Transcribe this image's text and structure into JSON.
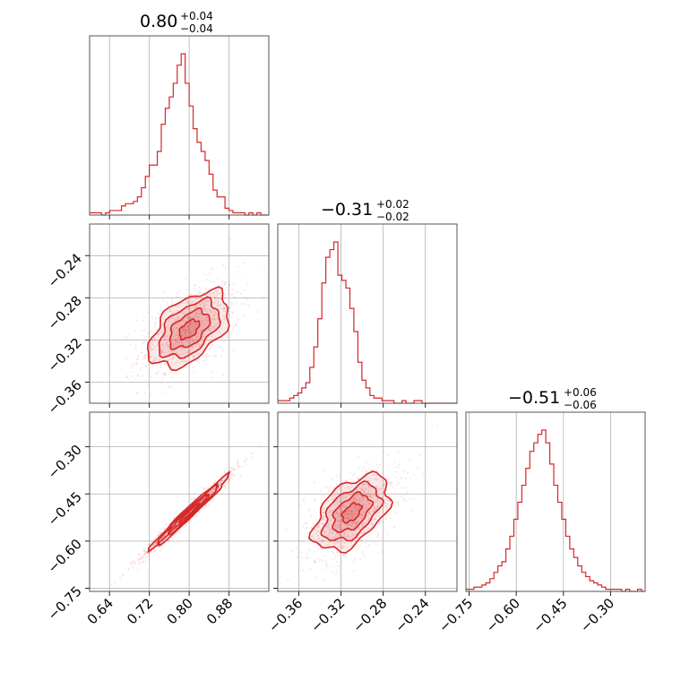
{
  "chart_data": {
    "type": "corner",
    "color": "#d62728",
    "parameters": [
      {
        "index": 0,
        "title_value": "0.80",
        "title_plus": "+0.04",
        "title_minus": "−0.04",
        "range": [
          0.6,
          0.96
        ],
        "ticks": [
          0.64,
          0.72,
          0.8,
          0.88
        ],
        "tick_labels": [
          "0.64",
          "0.72",
          "0.80",
          "0.88"
        ],
        "hist_step": 0.008,
        "hist_counts": [
          1,
          1,
          1,
          0,
          1,
          2,
          2,
          2,
          4,
          5,
          5,
          6,
          8,
          12,
          17,
          22,
          22,
          28,
          40,
          47,
          52,
          58,
          66,
          71,
          58,
          48,
          38,
          32,
          28,
          24,
          18,
          11,
          8,
          8,
          3,
          2,
          1,
          1,
          1,
          0,
          1,
          0,
          1,
          0,
          0
        ]
      },
      {
        "index": 1,
        "title_value": "−0.31",
        "title_plus": "+0.02",
        "title_minus": "−0.02",
        "range": [
          -0.38,
          -0.21
        ],
        "ticks": [
          -0.36,
          -0.32,
          -0.28,
          -0.24
        ],
        "tick_labels": [
          "−0.36",
          "−0.32",
          "−0.28",
          "−0.24"
        ],
        "hist_step": 0.0038,
        "hist_counts": [
          1,
          1,
          1,
          2,
          3,
          4,
          6,
          8,
          14,
          22,
          33,
          47,
          57,
          60,
          63,
          50,
          48,
          45,
          37,
          28,
          16,
          9,
          6,
          3,
          2,
          2,
          1,
          1,
          1,
          0,
          0,
          1,
          0,
          0,
          1,
          1,
          0,
          0,
          0,
          0,
          0,
          0,
          0,
          0,
          0
        ]
      },
      {
        "index": 2,
        "title_value": "−0.51",
        "title_plus": "+0.06",
        "title_minus": "−0.06",
        "range": [
          -0.76,
          -0.19
        ],
        "ticks": [
          -0.75,
          -0.6,
          -0.45,
          -0.3
        ],
        "tick_labels": [
          "−0.75",
          "−0.60",
          "−0.45",
          "−0.30"
        ],
        "hist_step": 0.0127,
        "hist_counts": [
          1,
          1,
          2,
          2,
          3,
          4,
          6,
          9,
          12,
          14,
          20,
          26,
          34,
          42,
          50,
          58,
          66,
          70,
          74,
          76,
          70,
          60,
          50,
          42,
          34,
          26,
          20,
          16,
          12,
          9,
          7,
          5,
          4,
          3,
          2,
          1,
          1,
          1,
          1,
          0,
          1,
          0,
          0,
          1,
          0
        ]
      }
    ],
    "pairs": [
      {
        "x": 0,
        "y": 1,
        "center": [
          0.8,
          -0.31
        ],
        "sd": [
          0.04,
          0.018
        ],
        "corr": 0.5
      },
      {
        "x": 0,
        "y": 2,
        "center": [
          0.8,
          -0.51
        ],
        "sd": [
          0.04,
          0.06
        ],
        "corr": 0.985
      },
      {
        "x": 1,
        "y": 2,
        "center": [
          -0.31,
          -0.51
        ],
        "sd": [
          0.018,
          0.06
        ],
        "corr": 0.5
      }
    ],
    "grid": true
  }
}
